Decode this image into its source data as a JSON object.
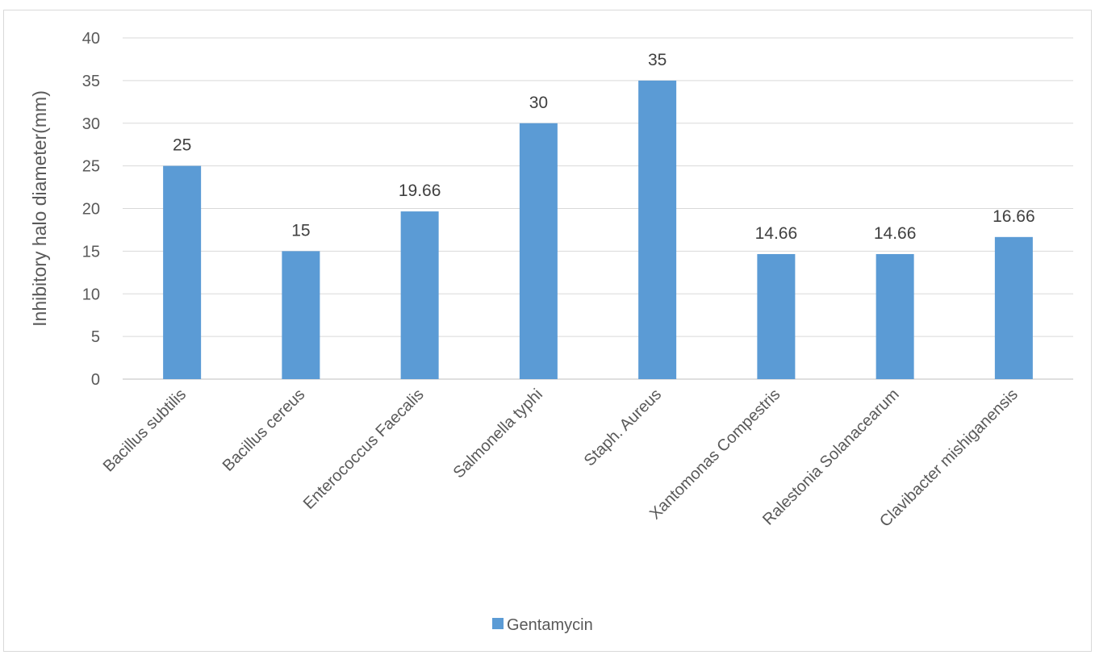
{
  "chart_data": {
    "type": "bar",
    "title": "",
    "xlabel": "",
    "ylabel": "Inhibitory halo diameter(mm)",
    "ylim": [
      0,
      40
    ],
    "yticks": [
      0,
      5,
      10,
      15,
      20,
      25,
      30,
      35,
      40
    ],
    "grid": true,
    "legend_position": "bottom",
    "categories": [
      "Bacillus subtilis",
      "Bacillus cereus",
      "Enterococcus Faecalis",
      "Salmonella typhi",
      "Staph. Aureus",
      "Xantomonas Compestris",
      "Ralestonia  Solanacearum",
      "Clavibacter mishiganensis"
    ],
    "series": [
      {
        "name": "Gentamycin",
        "color": "#5b9bd5",
        "values": [
          25,
          15,
          19.66,
          30,
          35,
          14.66,
          14.66,
          16.66
        ],
        "labels": [
          "25",
          "15",
          "19.66",
          "30",
          "35",
          "14.66",
          "14.66",
          "16.66"
        ]
      }
    ]
  }
}
